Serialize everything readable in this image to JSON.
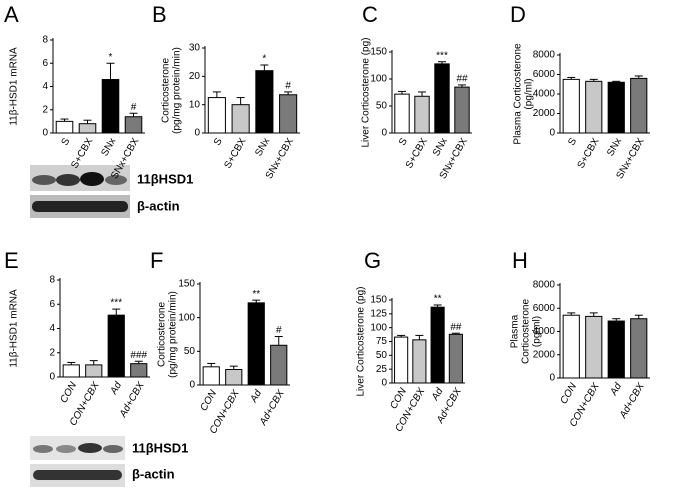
{
  "chart_data": [
    {
      "type": "bar",
      "panel": "A",
      "ylabel": [
        "11β-HSD1 mRNA"
      ],
      "categories": [
        "S",
        "S+CBX",
        "SNx",
        "SNx+CBX"
      ],
      "values": [
        1.0,
        0.8,
        4.6,
        1.4
      ],
      "errors": [
        0.2,
        0.3,
        1.4,
        0.3
      ],
      "annotations": [
        null,
        null,
        "*",
        "#"
      ],
      "colors": [
        "#ffffff",
        "#c8c8c8",
        "#000000",
        "#7a7a7a"
      ],
      "ylim": [
        0,
        8
      ],
      "yticks": [
        0,
        2,
        4,
        6,
        8
      ],
      "italic_categories": false
    },
    {
      "type": "bar",
      "panel": "B",
      "ylabel": [
        "Corticosterone",
        "(pg/mg protein/min)"
      ],
      "categories": [
        "S",
        "S+CBX",
        "SNx",
        "SNx+CBX"
      ],
      "values": [
        12.5,
        10,
        22,
        13.5
      ],
      "errors": [
        2,
        2.5,
        2,
        1
      ],
      "annotations": [
        null,
        null,
        "*",
        "#"
      ],
      "colors": [
        "#ffffff",
        "#c8c8c8",
        "#000000",
        "#7a7a7a"
      ],
      "ylim": [
        0,
        30
      ],
      "yticks": [
        0,
        10,
        20,
        30
      ],
      "italic_categories": false
    },
    {
      "type": "bar",
      "panel": "C",
      "ylabel": [
        "Liver Corticosterone (pg)"
      ],
      "categories": [
        "S",
        "S+CBX",
        "SNx",
        "SNx+CBX"
      ],
      "values": [
        72,
        68,
        128,
        85
      ],
      "errors": [
        5,
        8,
        4,
        4
      ],
      "annotations": [
        null,
        null,
        "***",
        "##"
      ],
      "colors": [
        "#ffffff",
        "#c8c8c8",
        "#000000",
        "#7a7a7a"
      ],
      "ylim": [
        0,
        150
      ],
      "yticks": [
        0,
        50,
        100,
        150
      ],
      "italic_categories": false
    },
    {
      "type": "bar",
      "panel": "D",
      "ylabel": [
        "Plasma Corticosterone",
        "(pg/ml)"
      ],
      "categories": [
        "S",
        "S+CBX",
        "SNx",
        "SNx+CBX"
      ],
      "values": [
        5500,
        5300,
        5200,
        5600
      ],
      "errors": [
        200,
        200,
        100,
        250
      ],
      "annotations": [
        null,
        null,
        null,
        null
      ],
      "colors": [
        "#ffffff",
        "#c8c8c8",
        "#000000",
        "#7a7a7a"
      ],
      "ylim": [
        0,
        8000
      ],
      "yticks": [
        0,
        2000,
        4000,
        6000,
        8000
      ],
      "italic_categories": false
    },
    {
      "type": "bar",
      "panel": "E",
      "ylabel": [
        "11β-HSD1 mRNA"
      ],
      "categories": [
        "CON",
        "CON+CBX",
        "Ad",
        "Ad+CBX"
      ],
      "values": [
        1.0,
        1.0,
        5.1,
        1.1
      ],
      "errors": [
        0.2,
        0.35,
        0.5,
        0.2
      ],
      "annotations": [
        null,
        null,
        "***",
        "###"
      ],
      "colors": [
        "#ffffff",
        "#c8c8c8",
        "#000000",
        "#7a7a7a"
      ],
      "ylim": [
        0,
        8
      ],
      "yticks": [
        0,
        2,
        4,
        6,
        8
      ],
      "italic_categories": true
    },
    {
      "type": "bar",
      "panel": "F",
      "ylabel": [
        "Corticosterone",
        "(pg/mg protein/min)"
      ],
      "categories": [
        "CON",
        "CON+CBX",
        "Ad",
        "Ad+CBX"
      ],
      "values": [
        27,
        23,
        122,
        59
      ],
      "errors": [
        5,
        5,
        4,
        13
      ],
      "annotations": [
        null,
        null,
        "**",
        "#"
      ],
      "colors": [
        "#ffffff",
        "#c8c8c8",
        "#000000",
        "#7a7a7a"
      ],
      "ylim": [
        0,
        150
      ],
      "yticks": [
        0,
        50,
        100,
        150
      ],
      "italic_categories": true
    },
    {
      "type": "bar",
      "panel": "G",
      "ylabel": [
        "Liver Corticosterone (pg)"
      ],
      "categories": [
        "CON",
        "CON+CBX",
        "Ad",
        "Ad+CBX"
      ],
      "values": [
        83,
        78,
        137,
        88
      ],
      "errors": [
        3,
        8,
        4,
        2
      ],
      "annotations": [
        null,
        null,
        "**",
        "##"
      ],
      "colors": [
        "#ffffff",
        "#c8c8c8",
        "#000000",
        "#7a7a7a"
      ],
      "ylim": [
        0,
        150
      ],
      "yticks": [
        0,
        25,
        50,
        75,
        100,
        125,
        150
      ],
      "italic_categories": true
    },
    {
      "type": "bar",
      "panel": "H",
      "ylabel": [
        "Plasma",
        "Corticosterone",
        "(pg/ml)"
      ],
      "categories": [
        "CON",
        "CON+CBX",
        "Ad",
        "Ad+CBX"
      ],
      "values": [
        5400,
        5300,
        4900,
        5100
      ],
      "errors": [
        200,
        300,
        200,
        300
      ],
      "annotations": [
        null,
        null,
        null,
        null
      ],
      "colors": [
        "#ffffff",
        "#c8c8c8",
        "#000000",
        "#7a7a7a"
      ],
      "ylim": [
        0,
        8000
      ],
      "yticks": [
        0,
        2000,
        4000,
        6000,
        8000
      ],
      "italic_categories": true
    }
  ],
  "blots": [
    {
      "labels": [
        "11βHSD1",
        "β-actin"
      ]
    },
    {
      "labels": [
        "11βHSD1",
        "β-actin"
      ]
    }
  ]
}
